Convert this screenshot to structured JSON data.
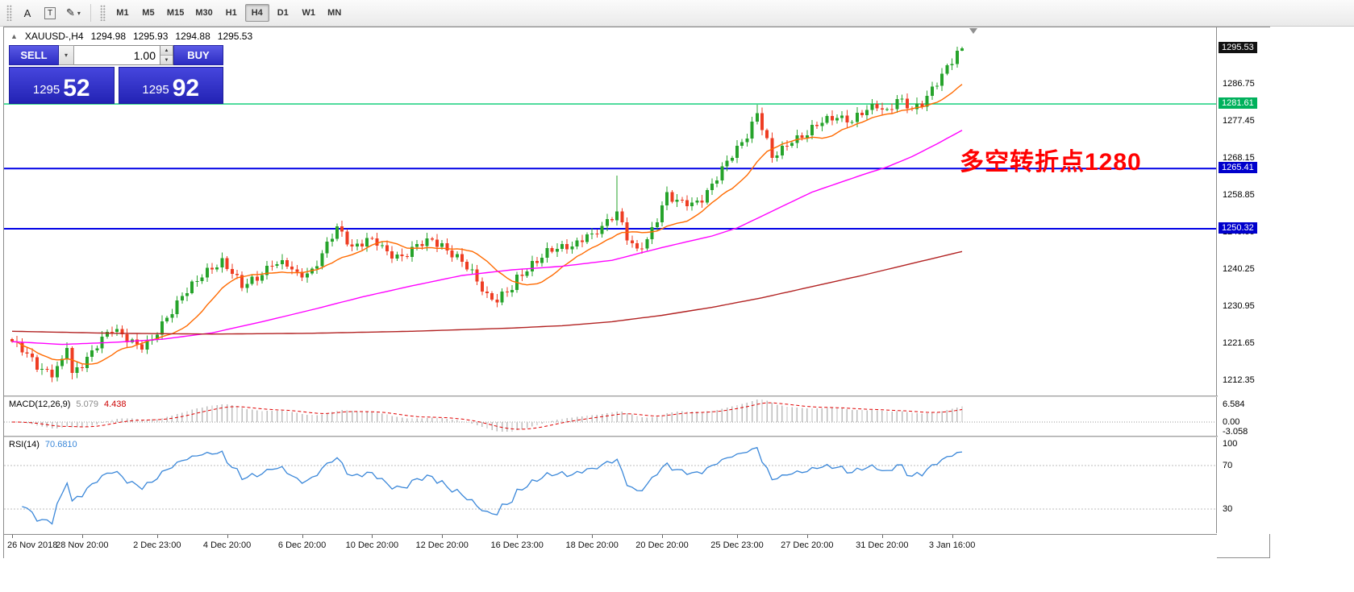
{
  "toolbar": {
    "tools": [
      {
        "name": "font-tool",
        "label": "A"
      },
      {
        "name": "text-label-tool",
        "label": "T"
      },
      {
        "name": "draw-tools",
        "label": "✎",
        "dropdown": "▾"
      }
    ],
    "timeframes": [
      "M1",
      "M5",
      "M15",
      "M30",
      "H1",
      "H4",
      "D1",
      "W1",
      "MN"
    ],
    "active_timeframe": "H4"
  },
  "chart_header": {
    "collapse_arrow": "▲",
    "symbol": "XAUUSD-,H4",
    "open": "1294.98",
    "high": "1295.93",
    "low": "1294.88",
    "close": "1295.53"
  },
  "trade_panel": {
    "sell_label": "SELL",
    "buy_label": "BUY",
    "volume": "1.00",
    "dropdown_icon": "▾",
    "spin_up_icon": "▲",
    "spin_down_icon": "▼",
    "sell_price_main": "1295",
    "sell_price_pips": "52",
    "buy_price_main": "1295",
    "buy_price_pips": "92"
  },
  "annotation": {
    "text": "多空转折点1280",
    "color": "#ff0000"
  },
  "chart_data": {
    "type": "candlestick",
    "symbol": "XAUUSD-",
    "timeframe": "H4",
    "title": "XAUUSD-,H4",
    "current_bar": {
      "open": 1294.98,
      "high": 1295.93,
      "low": 1294.88,
      "close": 1295.53
    },
    "price_axis": {
      "min": 1208.5,
      "max": 1300.8,
      "tick_labels": [
        "1286.75",
        "1277.45",
        "1268.15",
        "1258.85",
        "1249.55",
        "1240.25",
        "1230.95",
        "1221.65",
        "1212.35"
      ],
      "badges": [
        {
          "text": "1295.53",
          "price": 1295.53,
          "bg": "#121212"
        },
        {
          "text": "1281.61",
          "price": 1281.61,
          "bg": "#00b15c"
        },
        {
          "text": "1265.41",
          "price": 1265.41,
          "bg": "#0000cc"
        },
        {
          "text": "1250.32",
          "price": 1250.32,
          "bg": "#0000cc"
        }
      ]
    },
    "horizontal_lines": [
      {
        "price": 1281.61,
        "color": "#00cc70",
        "width": 1.4
      },
      {
        "price": 1265.41,
        "color": "#0000e6",
        "width": 2
      },
      {
        "price": 1250.32,
        "color": "#0000e6",
        "width": 2
      }
    ],
    "candles": {
      "count": 191,
      "up_color": "#26a32b",
      "down_color": "#ee3d23",
      "close_waypoints": [
        [
          0,
          1222
        ],
        [
          3,
          1218.5
        ],
        [
          5,
          1216
        ],
        [
          8,
          1214.2
        ],
        [
          10,
          1216.8
        ],
        [
          11,
          1220.8
        ],
        [
          12,
          1213.4
        ],
        [
          14,
          1216.5
        ],
        [
          17,
          1221.5
        ],
        [
          20,
          1224.8
        ],
        [
          23,
          1223
        ],
        [
          26,
          1221
        ],
        [
          28,
          1222
        ],
        [
          31,
          1228
        ],
        [
          34,
          1234
        ],
        [
          37,
          1237
        ],
        [
          40,
          1240.5
        ],
        [
          42,
          1242.5
        ],
        [
          44,
          1239.5
        ],
        [
          46,
          1235.5
        ],
        [
          49,
          1238
        ],
        [
          52,
          1242
        ],
        [
          55,
          1241
        ],
        [
          57,
          1238.5
        ],
        [
          60,
          1240
        ],
        [
          63,
          1246
        ],
        [
          65,
          1250.3
        ],
        [
          68,
          1246
        ],
        [
          71,
          1247.5
        ],
        [
          73,
          1246.5
        ],
        [
          75,
          1244.2
        ],
        [
          78,
          1243.6
        ],
        [
          81,
          1245.8
        ],
        [
          84,
          1247.4
        ],
        [
          86,
          1246.4
        ],
        [
          89,
          1243
        ],
        [
          92,
          1239
        ],
        [
          95,
          1233.8
        ],
        [
          97,
          1232.6
        ],
        [
          100,
          1235
        ],
        [
          101,
          1237.6
        ],
        [
          104,
          1241.8
        ],
        [
          107,
          1244.3
        ],
        [
          110,
          1245.4
        ],
        [
          113,
          1247
        ],
        [
          115,
          1249
        ],
        [
          116,
          1248
        ],
        [
          119,
          1251.8
        ],
        [
          121,
          1255
        ],
        [
          123,
          1248.5
        ],
        [
          125,
          1244.4
        ],
        [
          127,
          1247
        ],
        [
          129,
          1253
        ],
        [
          131,
          1259.5
        ],
        [
          133,
          1257
        ],
        [
          136,
          1256
        ],
        [
          138,
          1258
        ],
        [
          140,
          1261.8
        ],
        [
          143,
          1266.8
        ],
        [
          145,
          1270
        ],
        [
          147,
          1274
        ],
        [
          149,
          1279.8
        ],
        [
          151,
          1272
        ],
        [
          152,
          1267.8
        ],
        [
          154,
          1270
        ],
        [
          156,
          1272.8
        ],
        [
          159,
          1274.4
        ],
        [
          162,
          1276.8
        ],
        [
          165,
          1278.8
        ],
        [
          168,
          1277.4
        ],
        [
          171,
          1279.8
        ],
        [
          173,
          1281.4
        ],
        [
          175,
          1280
        ],
        [
          177,
          1282.8
        ],
        [
          180,
          1279.8
        ],
        [
          182,
          1282
        ],
        [
          184,
          1285.8
        ],
        [
          186,
          1288.8
        ],
        [
          188,
          1292
        ],
        [
          190,
          1295.5
        ]
      ],
      "overrides": [
        {
          "i": 12,
          "low": 1212.5
        },
        {
          "i": 121,
          "high": 1263.6
        },
        {
          "i": 149,
          "high": 1281.4
        },
        {
          "i": 189,
          "close": 1294.98
        },
        {
          "i": 190,
          "open": 1294.98,
          "high": 1295.93,
          "low": 1294.88,
          "close": 1295.53
        }
      ]
    },
    "moving_averages": [
      {
        "name": "fast-ma",
        "method": "sma",
        "period": 13,
        "color": "#ff6a00"
      },
      {
        "name": "mid-ma",
        "color": "#ff00ff",
        "waypoints": [
          [
            0,
            1222
          ],
          [
            10,
            1221.3
          ],
          [
            20,
            1221.8
          ],
          [
            30,
            1222.6
          ],
          [
            40,
            1224.2
          ],
          [
            50,
            1227
          ],
          [
            60,
            1230
          ],
          [
            70,
            1233.2
          ],
          [
            80,
            1236
          ],
          [
            90,
            1238.6
          ],
          [
            100,
            1240
          ],
          [
            110,
            1240.9
          ],
          [
            120,
            1242.4
          ],
          [
            130,
            1245.6
          ],
          [
            140,
            1248.5
          ],
          [
            145,
            1250.5
          ],
          [
            150,
            1253.5
          ],
          [
            155,
            1256.5
          ],
          [
            160,
            1259.5
          ],
          [
            170,
            1263.8
          ],
          [
            175,
            1265.8
          ],
          [
            180,
            1268.4
          ],
          [
            185,
            1271.6
          ],
          [
            190,
            1275
          ]
        ]
      },
      {
        "name": "slow-ma",
        "color": "#b22222",
        "waypoints": [
          [
            0,
            1224.6
          ],
          [
            20,
            1224.1
          ],
          [
            40,
            1223.9
          ],
          [
            60,
            1224.1
          ],
          [
            80,
            1224.6
          ],
          [
            100,
            1225.4
          ],
          [
            110,
            1226
          ],
          [
            120,
            1227
          ],
          [
            130,
            1228.6
          ],
          [
            140,
            1230.6
          ],
          [
            150,
            1233
          ],
          [
            160,
            1235.8
          ],
          [
            170,
            1238.6
          ],
          [
            180,
            1241.6
          ],
          [
            190,
            1244.6
          ]
        ]
      }
    ],
    "macd": {
      "label": "MACD(12,26,9)",
      "value": "5.079",
      "signal_value": "4.438",
      "fast": 12,
      "slow": 26,
      "signal": 9,
      "axis_labels": [
        "6.584",
        "0.00",
        "-3.058"
      ],
      "hist_color": "#bdbdbd",
      "signal_color": "#e00000"
    },
    "rsi": {
      "label": "RSI(14)",
      "value": "70.6810",
      "period": 14,
      "axis_labels": [
        "100",
        "70",
        "30"
      ],
      "levels": [
        70,
        30
      ],
      "color": "#3a87d9"
    },
    "time_axis": [
      {
        "label": "26 Nov 2018",
        "index": 0
      },
      {
        "label": "28 Nov 20:00",
        "index": 14
      },
      {
        "label": "2 Dec 23:00",
        "index": 29
      },
      {
        "label": "4 Dec 20:00",
        "index": 43
      },
      {
        "label": "6 Dec 20:00",
        "index": 58
      },
      {
        "label": "10 Dec 20:00",
        "index": 72
      },
      {
        "label": "12 Dec 20:00",
        "index": 86
      },
      {
        "label": "16 Dec 23:00",
        "index": 101
      },
      {
        "label": "18 Dec 20:00",
        "index": 116
      },
      {
        "label": "20 Dec 20:00",
        "index": 130
      },
      {
        "label": "25 Dec 23:00",
        "index": 145
      },
      {
        "label": "27 Dec 20:00",
        "index": 159
      },
      {
        "label": "31 Dec 20:00",
        "index": 174
      },
      {
        "label": "3 Jan 16:00",
        "index": 188
      }
    ]
  }
}
